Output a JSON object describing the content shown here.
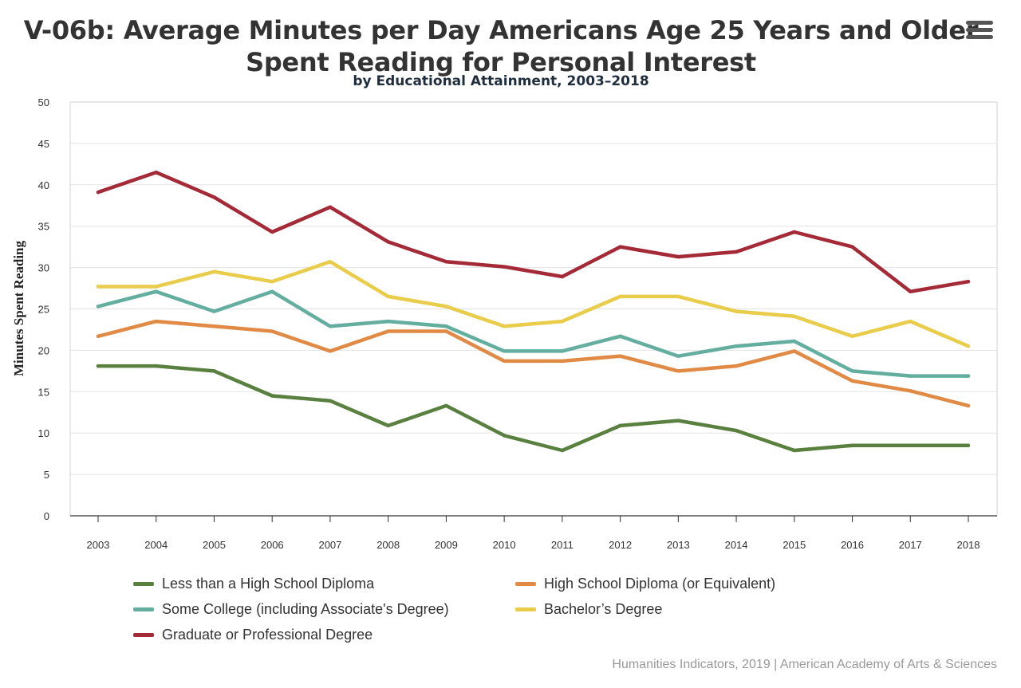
{
  "header": {
    "title_line1": "V-06b: Average Minutes per Day Americans Age 25 Years and Older",
    "title_line2": "Spent Reading for Personal Interest",
    "subtitle": "by Educational Attainment, 2003–2018"
  },
  "menu_icon": "hamburger-menu-icon",
  "credit": "Humanities Indicators, 2019 | American Academy of Arts & Sciences",
  "chart_data": {
    "type": "line",
    "title": "V-06b: Average Minutes per Day Americans Age 25 Years and Older Spent Reading for Personal Interest",
    "subtitle": "by Educational Attainment, 2003–2018",
    "xlabel": "",
    "ylabel": "Minutes Spent Reading",
    "ylim": [
      0,
      50
    ],
    "yticks": [
      0,
      5,
      10,
      15,
      20,
      25,
      30,
      35,
      40,
      45,
      50
    ],
    "grid": true,
    "legend_position": "bottom",
    "categories": [
      "2003",
      "2004",
      "2005",
      "2006",
      "2007",
      "2008",
      "2009",
      "2010",
      "2011",
      "2012",
      "2013",
      "2014",
      "2015",
      "2016",
      "2017",
      "2018"
    ],
    "series": [
      {
        "name": "Less than a High School Diploma",
        "color": "#5a8040",
        "values": [
          18.1,
          18.1,
          17.5,
          14.5,
          13.9,
          10.9,
          13.3,
          9.7,
          7.9,
          10.9,
          11.5,
          10.3,
          7.9,
          8.5,
          8.5,
          8.5
        ]
      },
      {
        "name": "High School Diploma (or Equivalent)",
        "color": "#e08a45",
        "values": [
          21.7,
          23.5,
          22.9,
          22.3,
          19.9,
          22.3,
          22.3,
          18.7,
          18.7,
          19.3,
          17.5,
          18.1,
          19.9,
          16.3,
          15.1,
          13.3
        ]
      },
      {
        "name": "Some College (including Associate's Degree)",
        "color": "#64aea0",
        "values": [
          25.3,
          27.1,
          24.7,
          27.1,
          22.9,
          23.5,
          22.9,
          19.9,
          19.9,
          21.7,
          19.3,
          20.5,
          21.1,
          17.5,
          16.9,
          16.9
        ]
      },
      {
        "name": "Bachelor’s Degree",
        "color": "#e8cc4a",
        "values": [
          27.7,
          27.7,
          29.5,
          28.3,
          30.7,
          26.5,
          25.3,
          22.9,
          23.5,
          26.5,
          26.5,
          24.7,
          24.1,
          21.7,
          23.5,
          20.5
        ]
      },
      {
        "name": "Graduate or Professional Degree",
        "color": "#a32a36",
        "values": [
          39.1,
          41.5,
          38.5,
          34.3,
          37.3,
          33.1,
          30.7,
          30.1,
          28.9,
          32.5,
          31.3,
          31.9,
          34.3,
          32.5,
          27.1,
          28.3
        ]
      }
    ]
  }
}
